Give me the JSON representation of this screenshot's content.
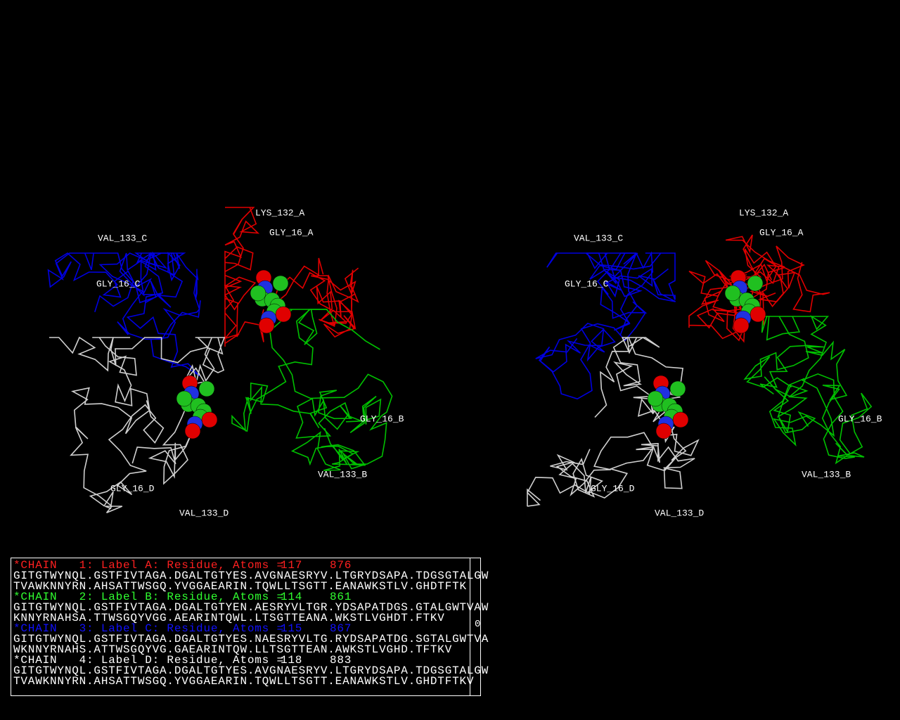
{
  "views": [
    {
      "labels": [
        "LYS_132_A",
        "GLY_16_A",
        "VAL_133_C",
        "GLY_16_C",
        "GLY_16_B",
        "VAL_133_B",
        "GLY_16_D",
        "VAL_133_D"
      ]
    },
    {
      "labels": [
        "LYS_132_A",
        "GLY_16_A",
        "VAL_133_C",
        "GLY_16_C",
        "GLY_16_B",
        "VAL_133_B",
        "GLY_16_D",
        "VAL_133_D"
      ]
    }
  ],
  "sequence_panel": {
    "chains": [
      {
        "header": "*CHAIN   1: Label A: Residue, Atoms =",
        "residues": 117,
        "atoms": 876,
        "lines": [
          "GITGTWYNQL.GSTFIVTAGA.DGALTGTYES.AVGNAESRYV.LTGRYDSAPA.TDGSGTALGW",
          "TVAWKNNYRN.AHSATTWSGQ.YVGGAEARIN.TQWLLTSGTT.EANAWKSTLV.GHDTFTK"
        ]
      },
      {
        "header": "*CHAIN   2: Label B: Residue, Atoms =",
        "residues": 114,
        "atoms": 861,
        "lines": [
          "GITGTWYNQL.GSTFIVTAGA.DGALTGTYEN.AESRYVLTGR.YDSAPATDGS.GTALGWTVAW",
          "KNNYRNAHSA.TTWSGQYVGG.AEARINTQWL.LTSGTTEANA.WKSTLVGHDT.FTKV"
        ]
      },
      {
        "header": "*CHAIN   3: Label C: Residue, Atoms =",
        "residues": 115,
        "atoms": 867,
        "lines": [
          "GITGTWYNQL.GSTFIVTAGA.DGALTGTYES.NAESRYVLTG.RYDSAPATDG.SGTALGWTVA",
          "WKNNYRNAHS.ATTWSGQYVG.GAEARINTQW.LLTSGTTEAN.AWKSTLVGHD.TFTKV"
        ]
      },
      {
        "header": "*CHAIN   4: Label D: Residue, Atoms =",
        "residues": 118,
        "atoms": 883,
        "lines": [
          "GITGTWYNQL.GSTFIVTAGA.DGALTGTYES.AVGNAESRYV.LTGRYDSAPA.TDGSGTALGW",
          "TVAWKNNYRN.AHSATTWSGQ.YVGGAEARIN.TQWLLTSGTT.EANAWKSTLV.GHDTFTKV"
        ]
      }
    ],
    "scroll_value": 0
  }
}
